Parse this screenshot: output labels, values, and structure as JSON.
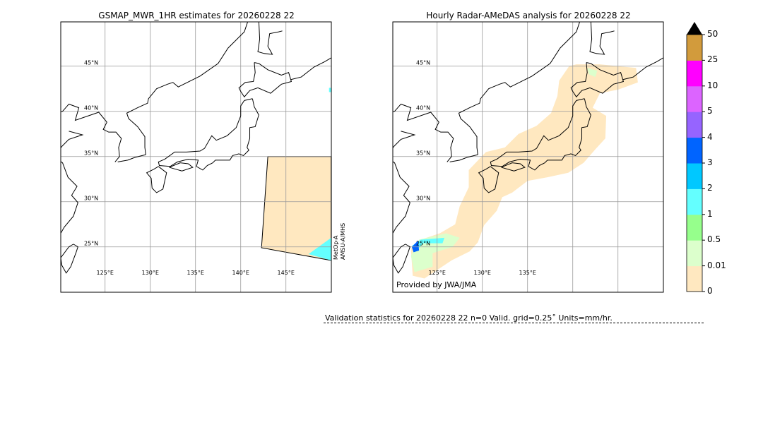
{
  "left_map": {
    "title": "GSMAP_MWR_1HR estimates for 20260228 22",
    "satellite_line1": "MetOp-A",
    "satellite_line2": "AMSU-A/MHS",
    "lat_labels": [
      "45°N",
      "40°N",
      "35°N",
      "30°N",
      "25°N"
    ],
    "lon_labels": [
      "125°E",
      "130°E",
      "135°E",
      "140°E",
      "145°E"
    ]
  },
  "right_map": {
    "title": "Hourly Radar-AMeDAS analysis for 20260228 22",
    "credit": "Provided by JWA/JMA",
    "lat_labels": [
      "45°N",
      "40°N",
      "35°N",
      "30°N",
      "25°N"
    ],
    "lon_labels": [
      "125°E",
      "130°E",
      "135°E"
    ]
  },
  "colorbar": {
    "units": "mm/hr",
    "extend": "max",
    "ticks": [
      "0",
      "0.01",
      "0.5",
      "1",
      "2",
      "3",
      "4",
      "5",
      "10",
      "25",
      "50"
    ],
    "colors": [
      "#ffe8c0",
      "#dcffcc",
      "#96ff8c",
      "#64ffff",
      "#00c8ff",
      "#0064ff",
      "#9664ff",
      "#dc64ff",
      "#ff00ff",
      "#d29b3c"
    ]
  },
  "validation": {
    "text": "Validation statistics for 20260228 22  n=0 Valid. grid=0.25˚ Units=mm/hr."
  }
}
